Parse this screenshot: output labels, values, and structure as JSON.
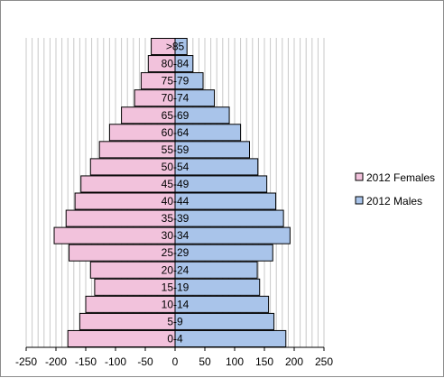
{
  "chart_data": {
    "type": "bar",
    "orientation": "horizontal",
    "layout": "population-pyramid",
    "categories": [
      "0-4",
      "5-9",
      "10-14",
      "15-19",
      "20-24",
      "25-29",
      "30-34",
      "35-39",
      "40-44",
      "45-49",
      "50-54",
      "55-59",
      "60-64",
      "65-69",
      "70-74",
      "75-79",
      "80-84",
      ">85"
    ],
    "series": [
      {
        "name": "2012 Females",
        "color": "#f2c2dc",
        "direction": "left",
        "values": [
          180,
          160,
          150,
          135,
          142,
          178,
          203,
          183,
          168,
          158,
          142,
          127,
          110,
          90,
          68,
          57,
          45,
          40
        ]
      },
      {
        "name": "2012 Males",
        "color": "#a9c4ea",
        "direction": "right",
        "values": [
          186,
          166,
          157,
          142,
          138,
          164,
          193,
          182,
          169,
          154,
          139,
          125,
          110,
          91,
          66,
          47,
          30,
          20
        ]
      }
    ],
    "xlim": [
      -250,
      250
    ],
    "xticks": [
      "-250",
      "-200",
      "-150",
      "-100",
      "-50",
      "0",
      "50",
      "100",
      "150",
      "200",
      "250"
    ],
    "xtick_values": [
      -250,
      -200,
      -150,
      -100,
      -50,
      0,
      50,
      100,
      150,
      200,
      250
    ],
    "grid": {
      "vertical": true,
      "vertical_step": 10,
      "horizontal": false,
      "color": "#c8c8c8"
    },
    "legend": {
      "position": "right"
    },
    "title": "",
    "xlabel": "",
    "ylabel": ""
  }
}
